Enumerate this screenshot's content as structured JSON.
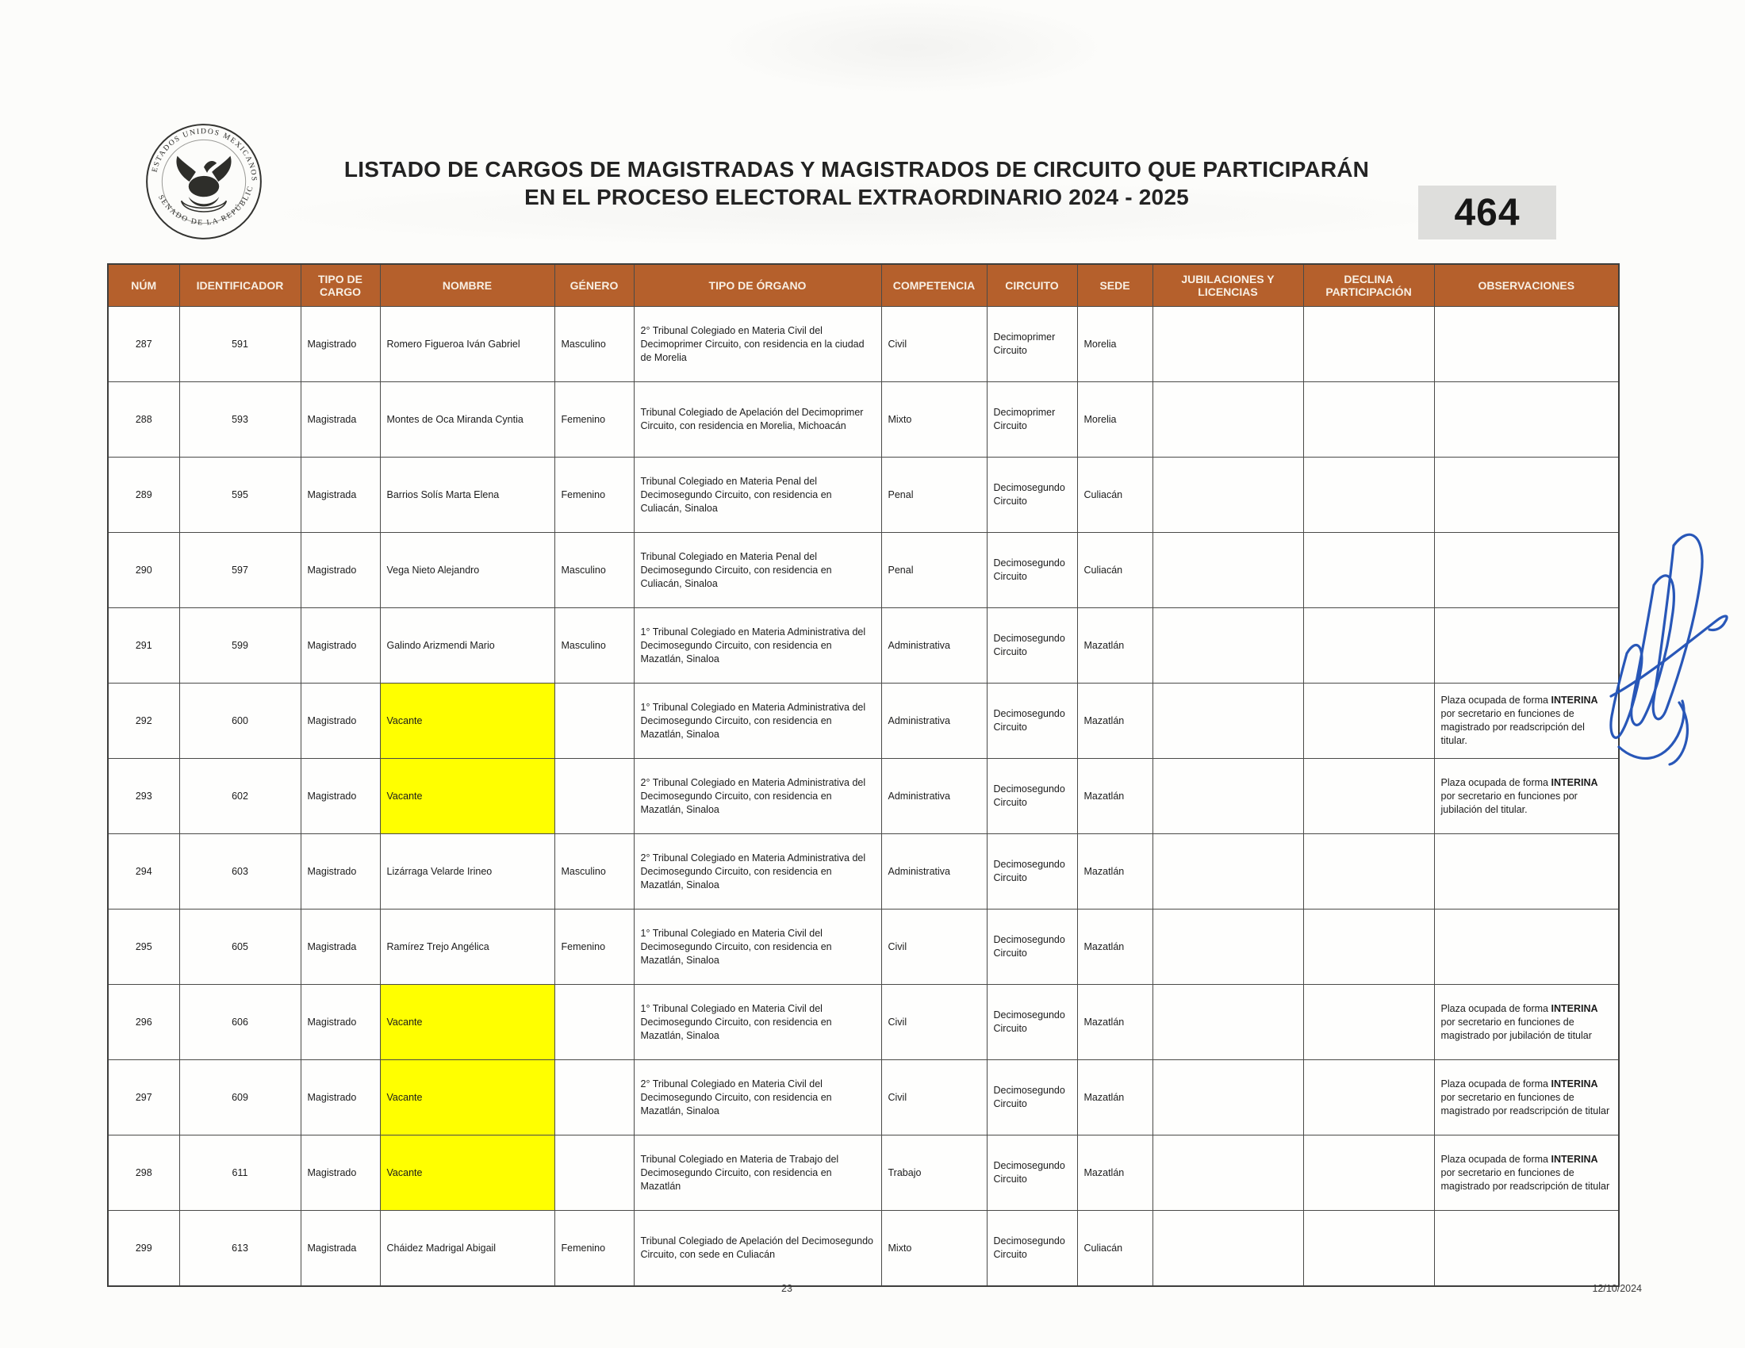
{
  "document": {
    "title_line1": "LISTADO DE CARGOS DE MAGISTRADAS Y MAGISTRADOS DE CIRCUITO QUE PARTICIPARÁN",
    "title_line2": "EN EL PROCESO ELECTORAL EXTRAORDINARIO 2024 - 2025",
    "page_badge": "464",
    "footer_page_number": "23",
    "footer_date": "12/10/2024",
    "seal": {
      "top": "ESTADOS UNIDOS MEXICANOS",
      "bottom": "SENADO DE LA REPÚBLICA"
    }
  },
  "colors": {
    "table_header_bg": "#b5602c",
    "vacant_highlight": "#ffff00",
    "signature_ink": "#1d4fb5"
  },
  "table": {
    "headers": [
      "NÚM",
      "IDENTIFICADOR",
      "TIPO DE CARGO",
      "NOMBRE",
      "GÉNERO",
      "TIPO DE ÓRGANO",
      "COMPETENCIA",
      "CIRCUITO",
      "SEDE",
      "JUBILACIONES Y LICENCIAS",
      "DECLINA PARTICIPACIÓN",
      "OBSERVACIONES"
    ],
    "rows": [
      {
        "num": "287",
        "id": "591",
        "cargo": "Magistrado",
        "nombre": "Romero Figueroa Iván Gabriel",
        "vacante": false,
        "genero": "Masculino",
        "organo": "2° Tribunal Colegiado en Materia Civil del Decimoprimer Circuito, con residencia en la ciudad de Morelia",
        "competencia": "Civil",
        "circuito": "Decimoprimer Circuito",
        "sede": "Morelia",
        "jubilaciones": "",
        "declina": "",
        "observaciones": ""
      },
      {
        "num": "288",
        "id": "593",
        "cargo": "Magistrada",
        "nombre": "Montes de Oca Miranda Cyntia",
        "vacante": false,
        "genero": "Femenino",
        "organo": "Tribunal Colegiado de Apelación del Decimoprimer Circuito, con residencia en Morelia, Michoacán",
        "competencia": "Mixto",
        "circuito": "Decimoprimer Circuito",
        "sede": "Morelia",
        "jubilaciones": "",
        "declina": "",
        "observaciones": ""
      },
      {
        "num": "289",
        "id": "595",
        "cargo": "Magistrada",
        "nombre": "Barrios Solís Marta Elena",
        "vacante": false,
        "genero": "Femenino",
        "organo": "Tribunal Colegiado en Materia Penal del Decimosegundo Circuito, con residencia en Culiacán, Sinaloa",
        "competencia": "Penal",
        "circuito": "Decimosegundo Circuito",
        "sede": "Culiacán",
        "jubilaciones": "",
        "declina": "",
        "observaciones": ""
      },
      {
        "num": "290",
        "id": "597",
        "cargo": "Magistrado",
        "nombre": "Vega Nieto Alejandro",
        "vacante": false,
        "genero": "Masculino",
        "organo": "Tribunal Colegiado en Materia Penal del Decimosegundo Circuito, con residencia en Culiacán, Sinaloa",
        "competencia": "Penal",
        "circuito": "Decimosegundo Circuito",
        "sede": "Culiacán",
        "jubilaciones": "",
        "declina": "",
        "observaciones": ""
      },
      {
        "num": "291",
        "id": "599",
        "cargo": "Magistrado",
        "nombre": "Galindo Arizmendi Mario",
        "vacante": false,
        "genero": "Masculino",
        "organo": "1° Tribunal Colegiado en Materia Administrativa del Decimosegundo Circuito, con residencia en Mazatlán, Sinaloa",
        "competencia": "Administrativa",
        "circuito": "Decimosegundo Circuito",
        "sede": "Mazatlán",
        "jubilaciones": "",
        "declina": "",
        "observaciones": ""
      },
      {
        "num": "292",
        "id": "600",
        "cargo": "Magistrado",
        "nombre": "Vacante",
        "vacante": true,
        "genero": "",
        "organo": "1° Tribunal Colegiado en Materia Administrativa del Decimosegundo Circuito, con residencia en Mazatlán, Sinaloa",
        "competencia": "Administrativa",
        "circuito": "Decimosegundo Circuito",
        "sede": "Mazatlán",
        "jubilaciones": "",
        "declina": "",
        "observaciones": "Plaza ocupada de forma INTERINA por secretario en funciones de magistrado por readscripción del titular."
      },
      {
        "num": "293",
        "id": "602",
        "cargo": "Magistrado",
        "nombre": "Vacante",
        "vacante": true,
        "genero": "",
        "organo": "2° Tribunal Colegiado en Materia Administrativa del Decimosegundo Circuito, con residencia en Mazatlán, Sinaloa",
        "competencia": "Administrativa",
        "circuito": "Decimosegundo Circuito",
        "sede": "Mazatlán",
        "jubilaciones": "",
        "declina": "",
        "observaciones": "Plaza ocupada de forma INTERINA por secretario en funciones por jubilación del titular."
      },
      {
        "num": "294",
        "id": "603",
        "cargo": "Magistrado",
        "nombre": "Lizárraga Velarde Irineo",
        "vacante": false,
        "genero": "Masculino",
        "organo": "2° Tribunal Colegiado en Materia Administrativa del Decimosegundo Circuito, con residencia en Mazatlán, Sinaloa",
        "competencia": "Administrativa",
        "circuito": "Decimosegundo Circuito",
        "sede": "Mazatlán",
        "jubilaciones": "",
        "declina": "",
        "observaciones": ""
      },
      {
        "num": "295",
        "id": "605",
        "cargo": "Magistrada",
        "nombre": "Ramírez Trejo Angélica",
        "vacante": false,
        "genero": "Femenino",
        "organo": "1° Tribunal Colegiado en Materia Civil del Decimosegundo Circuito, con residencia en Mazatlán, Sinaloa",
        "competencia": "Civil",
        "circuito": "Decimosegundo Circuito",
        "sede": "Mazatlán",
        "jubilaciones": "",
        "declina": "",
        "observaciones": ""
      },
      {
        "num": "296",
        "id": "606",
        "cargo": "Magistrado",
        "nombre": "Vacante",
        "vacante": true,
        "genero": "",
        "organo": "1° Tribunal Colegiado en Materia Civil del Decimosegundo Circuito, con residencia en Mazatlán, Sinaloa",
        "competencia": "Civil",
        "circuito": "Decimosegundo Circuito",
        "sede": "Mazatlán",
        "jubilaciones": "",
        "declina": "",
        "observaciones": "Plaza ocupada de forma INTERINA por secretario en funciones de magistrado por jubilación de titular"
      },
      {
        "num": "297",
        "id": "609",
        "cargo": "Magistrado",
        "nombre": "Vacante",
        "vacante": true,
        "genero": "",
        "organo": "2° Tribunal Colegiado en Materia Civil del Decimosegundo Circuito, con residencia en Mazatlán, Sinaloa",
        "competencia": "Civil",
        "circuito": "Decimosegundo Circuito",
        "sede": "Mazatlán",
        "jubilaciones": "",
        "declina": "",
        "observaciones": "Plaza ocupada de forma INTERINA por secretario en funciones de magistrado por readscripción de titular"
      },
      {
        "num": "298",
        "id": "611",
        "cargo": "Magistrado",
        "nombre": "Vacante",
        "vacante": true,
        "genero": "",
        "organo": "Tribunal Colegiado en Materia de Trabajo del Decimosegundo Circuito, con residencia en Mazatlán",
        "competencia": "Trabajo",
        "circuito": "Decimosegundo Circuito",
        "sede": "Mazatlán",
        "jubilaciones": "",
        "declina": "",
        "observaciones": "Plaza ocupada de forma INTERINA por secretario en funciones de magistrado por readscripción de titular"
      },
      {
        "num": "299",
        "id": "613",
        "cargo": "Magistrada",
        "nombre": "Cháidez Madrigal Abigail",
        "vacante": false,
        "genero": "Femenino",
        "organo": "Tribunal Colegiado de Apelación del Decimosegundo Circuito, con sede en Culiacán",
        "competencia": "Mixto",
        "circuito": "Decimosegundo Circuito",
        "sede": "Culiacán",
        "jubilaciones": "",
        "declina": "",
        "observaciones": ""
      }
    ]
  }
}
